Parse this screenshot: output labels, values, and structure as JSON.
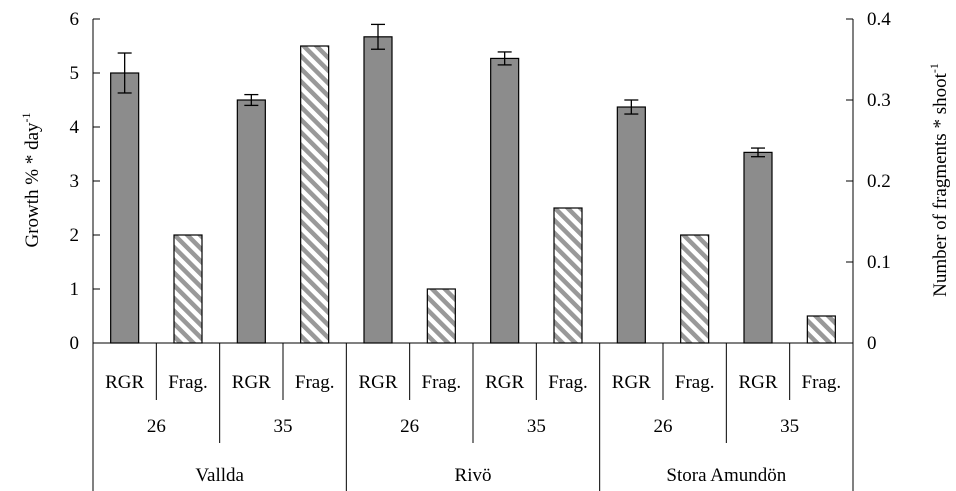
{
  "chart_data": {
    "type": "bar",
    "title": "",
    "ylabel": "Growth % * day",
    "ylabel_sup": "-1",
    "y2label": "Number of fragments * shoot",
    "y2label_sup": "-1",
    "ylim": [
      0,
      6
    ],
    "y2lim": [
      0,
      0.4
    ],
    "yticks": [
      "0",
      "1",
      "2",
      "3",
      "4",
      "5",
      "6"
    ],
    "y2ticks": [
      "0",
      "0.1",
      "0.2",
      "0.3",
      "0.4"
    ],
    "grid": false,
    "legend": "none",
    "categories": [
      {
        "label": "RGR",
        "kind": "rgr",
        "value": 5.0,
        "err": 0.37
      },
      {
        "label": "Frag.",
        "kind": "frag",
        "value": 2.0
      },
      {
        "label": "RGR",
        "kind": "rgr",
        "value": 4.5,
        "err": 0.1
      },
      {
        "label": "Frag.",
        "kind": "frag",
        "value": 5.5
      },
      {
        "label": "RGR",
        "kind": "rgr",
        "value": 5.67,
        "err": 0.23
      },
      {
        "label": "Frag.",
        "kind": "frag",
        "value": 1.0
      },
      {
        "label": "RGR",
        "kind": "rgr",
        "value": 5.27,
        "err": 0.12
      },
      {
        "label": "Frag.",
        "kind": "frag",
        "value": 2.5
      },
      {
        "label": "RGR",
        "kind": "rgr",
        "value": 4.37,
        "err": 0.13
      },
      {
        "label": "Frag.",
        "kind": "frag",
        "value": 2.0
      },
      {
        "label": "RGR",
        "kind": "rgr",
        "value": 3.53,
        "err": 0.08
      },
      {
        "label": "Frag.",
        "kind": "frag",
        "value": 0.5
      }
    ],
    "depths": [
      "26",
      "35",
      "26",
      "35",
      "26",
      "35"
    ],
    "sites": [
      "Vallda",
      "Rivö",
      "Stora Amundön"
    ],
    "colors": {
      "rgr_fill": "#8c8c8c",
      "hatch_fill": "#ffffff",
      "hatch_stroke": "#999999"
    }
  }
}
